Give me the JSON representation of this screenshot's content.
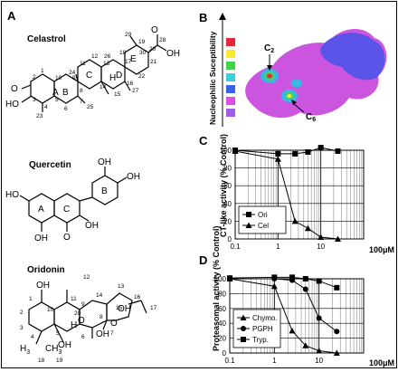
{
  "panels": {
    "A": {
      "letter": "A",
      "compounds": [
        {
          "name": "Celastrol",
          "labels": {
            "rings": [
              "A",
              "B",
              "C",
              "D",
              "E"
            ],
            "ho": "HO",
            "oh": "OH",
            "o_ketone": "O",
            "o_acid": "O",
            "numbers": [
              "1",
              "2",
              "3",
              "4",
              "5",
              "6",
              "7",
              "8",
              "9",
              "10",
              "11",
              "12",
              "13",
              "14",
              "15",
              "16",
              "17",
              "18",
              "19",
              "20",
              "21",
              "22",
              "23",
              "24",
              "25",
              "26",
              "27",
              "28",
              "29",
              "30"
            ],
            "h": "H"
          }
        },
        {
          "name": "Quercetin",
          "labels": {
            "rings": [
              "A",
              "C",
              "B"
            ],
            "ho": "HO",
            "oh": "OH",
            "o": "O"
          }
        },
        {
          "name": "Oridonin",
          "labels": {
            "oh": "OH",
            "o": "O",
            "h3c": "H",
            "ch3": "CH",
            "sub3": "3",
            "h": "H",
            "numbers": [
              "1",
              "2",
              "3",
              "4",
              "5",
              "6",
              "7",
              "8",
              "9",
              "10",
              "11",
              "12",
              "13",
              "14",
              "15",
              "16",
              "17",
              "18",
              "19",
              "20"
            ]
          }
        }
      ]
    },
    "B": {
      "letter": "B",
      "axis_label": "Nucleophilic Suceptibility",
      "scale_colors": [
        "#e8263a",
        "#f7ec2b",
        "#3fd24a",
        "#3ad0d9",
        "#3a61e9",
        "#e04ae6",
        "#9f5ce8"
      ],
      "arrow_labels": {
        "c2": "C",
        "c2_sub": "2",
        "c6": "C",
        "c6_sub": "6"
      }
    },
    "C": {
      "letter": "C"
    },
    "D": {
      "letter": "D"
    }
  },
  "chart_data": [
    {
      "type": "line",
      "panel": "C",
      "ylabel": "CT-like activity (% Control)",
      "xlabel": "100μM",
      "x_scale": "log",
      "xlim": [
        0.1,
        100
      ],
      "ylim": [
        0,
        100
      ],
      "x_ticks": [
        "0.1",
        "1",
        "10"
      ],
      "y_ticks": [
        "0",
        "20",
        "40",
        "60",
        "80",
        "100"
      ],
      "legend_position": "bottom-left",
      "series": [
        {
          "name": "Ori",
          "marker": "square",
          "x": [
            0.1,
            1,
            2.5,
            5,
            10,
            25
          ],
          "y": [
            100,
            96,
            96,
            98,
            103,
            99
          ]
        },
        {
          "name": "Cel",
          "marker": "triangle",
          "x": [
            0.1,
            1,
            2.5,
            5,
            10,
            25
          ],
          "y": [
            99,
            90,
            20,
            12,
            2,
            0
          ]
        }
      ]
    },
    {
      "type": "line",
      "panel": "D",
      "ylabel": "Proteasomal activity (% Control)",
      "xlabel": "100μM",
      "x_scale": "log",
      "xlim": [
        0.1,
        100
      ],
      "ylim": [
        0,
        100
      ],
      "x_ticks": [
        "0.1",
        "1",
        "10"
      ],
      "y_ticks": [
        "0",
        "20",
        "40",
        "60",
        "80",
        "100"
      ],
      "legend_position": "bottom-left",
      "series": [
        {
          "name": "Chymo.",
          "marker": "triangle",
          "x": [
            0.1,
            1,
            2.5,
            5,
            10,
            25
          ],
          "y": [
            100,
            90,
            30,
            10,
            3,
            0
          ]
        },
        {
          "name": "PGPH",
          "marker": "circle",
          "x": [
            0.1,
            1,
            2.5,
            5,
            10,
            25
          ],
          "y": [
            100,
            100,
            98,
            86,
            47,
            29
          ]
        },
        {
          "name": "Tryp.",
          "marker": "square",
          "x": [
            0.1,
            1,
            2.5,
            5,
            10,
            25
          ],
          "y": [
            101,
            102,
            102,
            100,
            97,
            88
          ]
        }
      ]
    }
  ]
}
